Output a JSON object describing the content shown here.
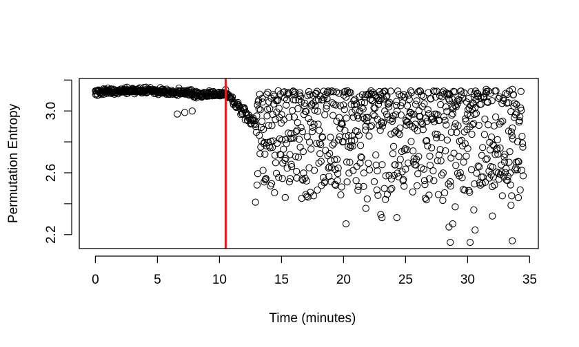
{
  "chart_data": {
    "type": "scatter",
    "title": "",
    "xlabel": "Time (minutes)",
    "ylabel": "Permutation Entropy",
    "xlim": [
      -1.3,
      35.7
    ],
    "ylim": [
      2.11,
      3.21
    ],
    "x_ticks": [
      "0",
      "5",
      "10",
      "15",
      "20",
      "25",
      "30",
      "35"
    ],
    "y_ticks": [
      "2.2",
      "2.6",
      "3.0"
    ],
    "y_minor_ticks": [
      2.2,
      2.4,
      2.6,
      2.8,
      3.0,
      3.2
    ],
    "grid": false,
    "legend": "none",
    "marker": "open-circle",
    "changepoint_x": 10.5,
    "changepoint_color": "#e41a1c",
    "point_color": "#000000",
    "series_summary": [
      {
        "segment": "before",
        "x_range": [
          0,
          10.5
        ],
        "y_mean": 3.12,
        "y_spread": 0.05,
        "min_outliers": [
          2.98,
          2.99,
          3.0
        ]
      },
      {
        "segment": "transition",
        "x_range": [
          10.5,
          13
        ],
        "y_from": 3.12,
        "y_to": 2.9
      },
      {
        "segment": "after",
        "x_range": [
          13,
          34.5
        ],
        "y_range": [
          2.15,
          3.14
        ],
        "y_mean": 2.85
      }
    ],
    "notable_points": [
      {
        "x": 12.9,
        "y": 2.41
      },
      {
        "x": 15.3,
        "y": 2.44
      },
      {
        "x": 20.2,
        "y": 2.27
      },
      {
        "x": 21.8,
        "y": 2.37
      },
      {
        "x": 23.0,
        "y": 2.33
      },
      {
        "x": 23.1,
        "y": 2.31
      },
      {
        "x": 24.3,
        "y": 2.31
      },
      {
        "x": 28.5,
        "y": 2.25
      },
      {
        "x": 28.6,
        "y": 2.15
      },
      {
        "x": 28.8,
        "y": 2.27
      },
      {
        "x": 29.0,
        "y": 2.38
      },
      {
        "x": 30.2,
        "y": 2.15
      },
      {
        "x": 30.5,
        "y": 2.36
      },
      {
        "x": 30.6,
        "y": 2.23
      },
      {
        "x": 32.0,
        "y": 2.32
      },
      {
        "x": 33.5,
        "y": 2.39
      },
      {
        "x": 33.6,
        "y": 2.16
      },
      {
        "x": 33.6,
        "y": 3.14
      },
      {
        "x": 31.5,
        "y": 3.14
      }
    ]
  }
}
